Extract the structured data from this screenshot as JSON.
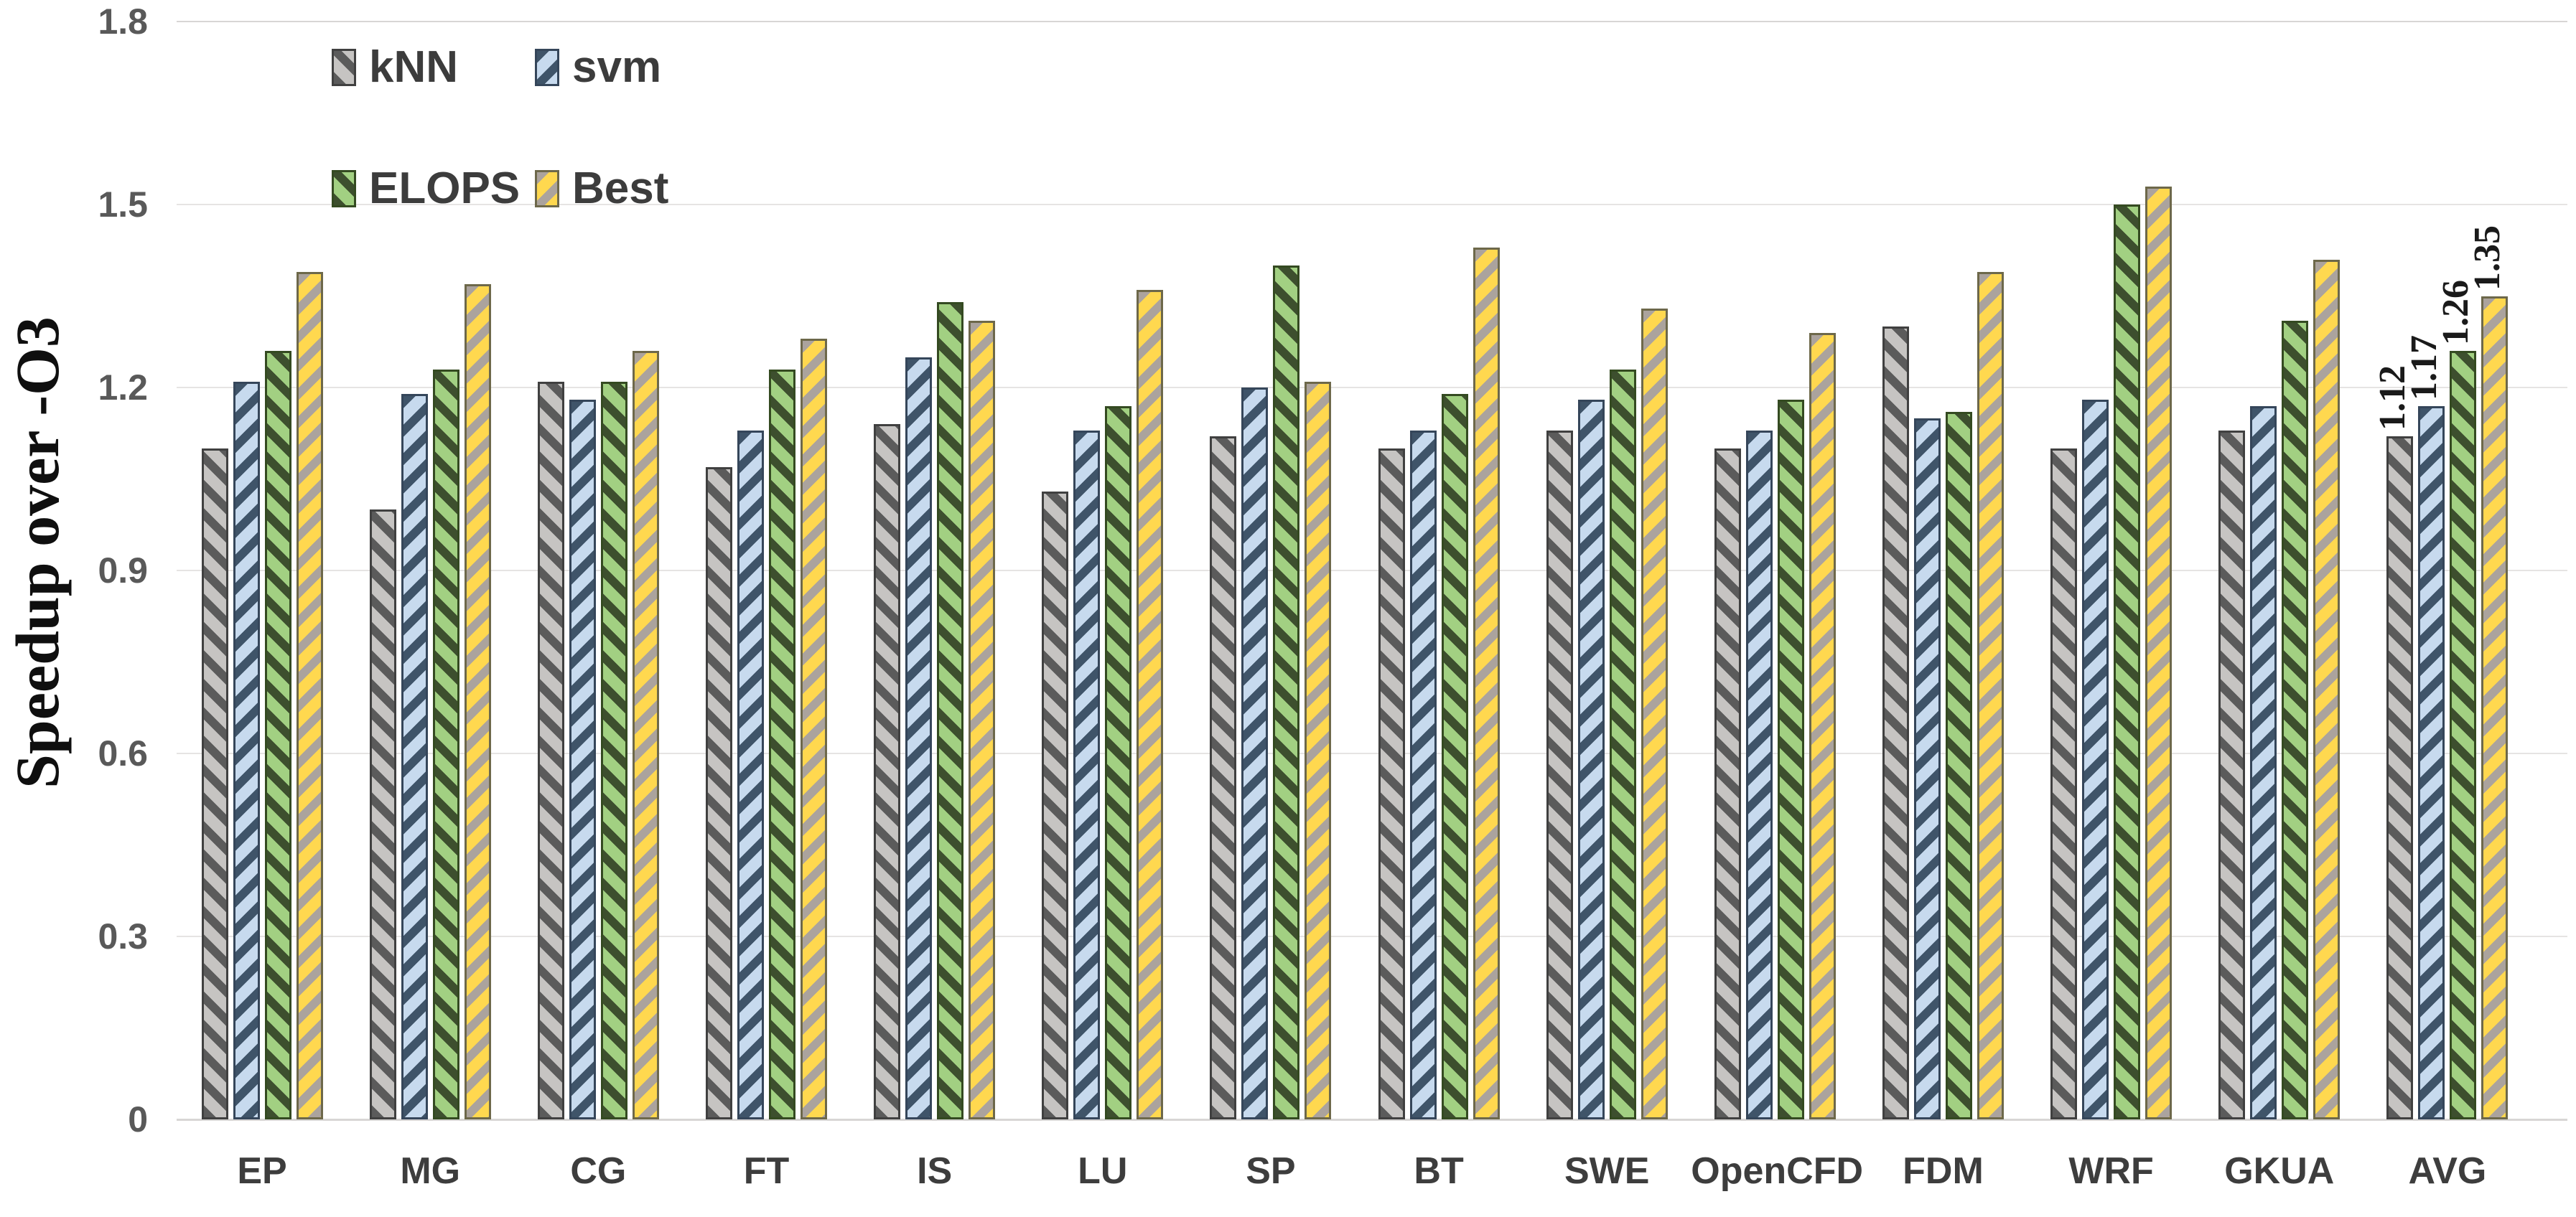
{
  "chart_data": {
    "type": "bar",
    "title": "",
    "xlabel": "",
    "ylabel": "Speedup over -O3",
    "ylim": [
      0,
      1.8
    ],
    "yticks": [
      0,
      0.3,
      0.6,
      0.9,
      1.2,
      1.5,
      1.8
    ],
    "ytick_labels": [
      "0",
      "0.3",
      "0.6",
      "0.9",
      "1.2",
      "1.5",
      "1.8"
    ],
    "grid": true,
    "legend_position": "top-left-inside",
    "categories": [
      "EP",
      "MG",
      "CG",
      "FT",
      "IS",
      "LU",
      "SP",
      "BT",
      "SWE",
      "OpenCFD",
      "FDM",
      "WRF",
      "GKUA",
      "AVG"
    ],
    "series": [
      {
        "name": "kNN",
        "values": [
          1.1,
          1.0,
          1.21,
          1.07,
          1.14,
          1.03,
          1.12,
          1.1,
          1.13,
          1.1,
          1.3,
          1.1,
          1.13,
          1.12
        ],
        "fill": "#c6c4c2",
        "stripe": "#5b5b5b",
        "border": "#404040",
        "stripe_dir": "backslash"
      },
      {
        "name": "svm",
        "values": [
          1.21,
          1.19,
          1.18,
          1.13,
          1.25,
          1.13,
          1.2,
          1.13,
          1.18,
          1.13,
          1.15,
          1.18,
          1.17,
          1.17
        ],
        "fill": "#c7daee",
        "stripe": "#3f5469",
        "border": "#35465a",
        "stripe_dir": "slash"
      },
      {
        "name": "ELOPS",
        "values": [
          1.26,
          1.23,
          1.21,
          1.23,
          1.34,
          1.17,
          1.4,
          1.19,
          1.23,
          1.18,
          1.16,
          1.5,
          1.31,
          1.26
        ],
        "fill": "#a2d082",
        "stripe": "#3d4f2e",
        "border": "#344a21",
        "stripe_dir": "backslash"
      },
      {
        "name": "Best",
        "values": [
          1.39,
          1.37,
          1.26,
          1.28,
          1.31,
          1.36,
          1.21,
          1.43,
          1.33,
          1.29,
          1.39,
          1.53,
          1.41,
          1.35
        ],
        "fill": "#ffd84f",
        "stripe": "#aba39d",
        "border": "#6d684a",
        "stripe_dir": "slash"
      }
    ],
    "data_labels": {
      "category": "AVG",
      "values": [
        "1.12",
        "1.17",
        "1.26",
        "1.35"
      ]
    }
  }
}
